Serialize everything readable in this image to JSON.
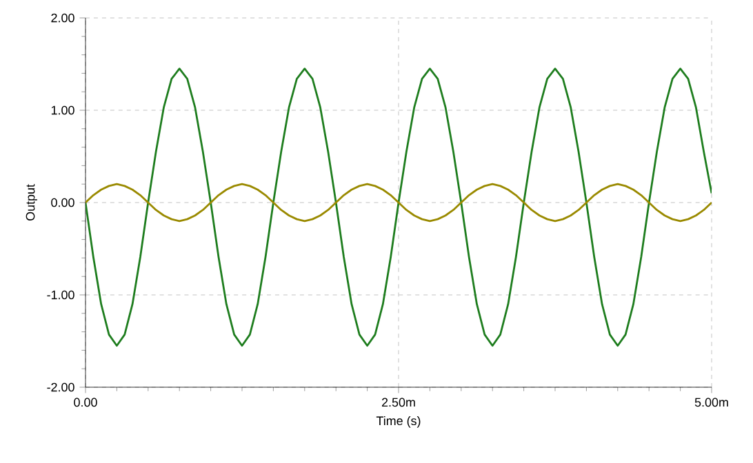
{
  "chart_data": {
    "type": "line",
    "xlabel": "Time (s)",
    "ylabel": "Output",
    "x": [
      0,
      0.0625,
      0.125,
      0.1875,
      0.25,
      0.3125,
      0.375,
      0.4375,
      0.5,
      0.5625,
      0.625,
      0.6875,
      0.75,
      0.8125,
      0.875,
      0.9375,
      1,
      1.0625,
      1.125,
      1.1875,
      1.25,
      1.3125,
      1.375,
      1.4375,
      1.5,
      1.5625,
      1.625,
      1.6875,
      1.75,
      1.8125,
      1.875,
      1.9375,
      2,
      2.0625,
      2.125,
      2.1875,
      2.25,
      2.3125,
      2.375,
      2.4375,
      2.5,
      2.5625,
      2.625,
      2.6875,
      2.75,
      2.8125,
      2.875,
      2.9375,
      3,
      3.0625,
      3.125,
      3.1875,
      3.25,
      3.3125,
      3.375,
      3.4375,
      3.5,
      3.5625,
      3.625,
      3.6875,
      3.75,
      3.8125,
      3.875,
      3.9375,
      4,
      4.0625,
      4.125,
      4.1875,
      4.25,
      4.3125,
      4.375,
      4.4375,
      4.5,
      4.5625,
      4.625,
      4.6875,
      4.75,
      4.8125,
      4.875,
      4.9375,
      5
    ],
    "series": [
      {
        "color": "#1e7d1e",
        "values": [
          0,
          -0.59,
          -1.1,
          -1.43,
          -1.55,
          -1.43,
          -1.1,
          -0.59,
          0,
          0.55,
          1.03,
          1.34,
          1.45,
          1.34,
          1.03,
          0.55,
          0,
          -0.59,
          -1.1,
          -1.43,
          -1.55,
          -1.43,
          -1.1,
          -0.59,
          0,
          0.55,
          1.03,
          1.34,
          1.45,
          1.34,
          1.03,
          0.55,
          0,
          -0.59,
          -1.1,
          -1.43,
          -1.55,
          -1.43,
          -1.1,
          -0.59,
          0,
          0.55,
          1.03,
          1.34,
          1.45,
          1.34,
          1.03,
          0.55,
          0,
          -0.59,
          -1.1,
          -1.43,
          -1.55,
          -1.43,
          -1.1,
          -0.59,
          0,
          0.55,
          1.03,
          1.34,
          1.45,
          1.34,
          1.03,
          0.55,
          0,
          -0.59,
          -1.1,
          -1.43,
          -1.55,
          -1.43,
          -1.1,
          -0.59,
          0,
          0.55,
          1.03,
          1.34,
          1.45,
          1.34,
          1.03,
          0.55,
          0.1
        ]
      },
      {
        "color": "#9a8a00",
        "values": [
          0,
          0.08,
          0.14,
          0.18,
          0.2,
          0.18,
          0.14,
          0.08,
          0,
          -0.08,
          -0.14,
          -0.18,
          -0.2,
          -0.18,
          -0.14,
          -0.08,
          0,
          0.08,
          0.14,
          0.18,
          0.2,
          0.18,
          0.14,
          0.08,
          0,
          -0.08,
          -0.14,
          -0.18,
          -0.2,
          -0.18,
          -0.14,
          -0.08,
          0,
          0.08,
          0.14,
          0.18,
          0.2,
          0.18,
          0.14,
          0.08,
          0,
          -0.08,
          -0.14,
          -0.18,
          -0.2,
          -0.18,
          -0.14,
          -0.08,
          0,
          0.08,
          0.14,
          0.18,
          0.2,
          0.18,
          0.14,
          0.08,
          0,
          -0.08,
          -0.14,
          -0.18,
          -0.2,
          -0.18,
          -0.14,
          -0.08,
          0,
          0.08,
          0.14,
          0.18,
          0.2,
          0.18,
          0.14,
          0.08,
          0,
          -0.08,
          -0.14,
          -0.18,
          -0.2,
          -0.18,
          -0.14,
          -0.08,
          0
        ]
      }
    ],
    "xlim": [
      0,
      5
    ],
    "ylim": [
      -2,
      2
    ],
    "xticks": [
      {
        "value": 0,
        "label": "0.00"
      },
      {
        "value": 2.5,
        "label": "2.50m"
      },
      {
        "value": 5,
        "label": "5.00m"
      }
    ],
    "yticks": [
      {
        "value": -2,
        "label": "-2.00"
      },
      {
        "value": -1,
        "label": "-1.00"
      },
      {
        "value": 0,
        "label": "0.00"
      },
      {
        "value": 1,
        "label": "1.00"
      },
      {
        "value": 2,
        "label": "2.00"
      }
    ],
    "grid": true
  }
}
